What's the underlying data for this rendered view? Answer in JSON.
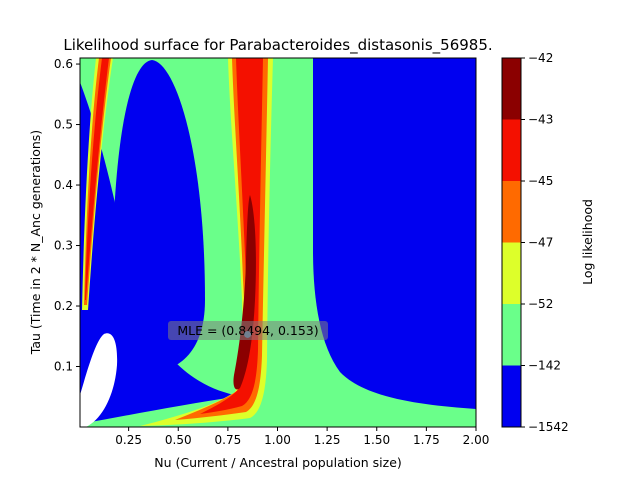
{
  "chart_data": {
    "type": "heatmap",
    "title": "Likelihood surface for Parabacteroides_distasonis_56985.",
    "xlabel": "Nu (Current / Ancestral population size)",
    "ylabel": "Tau (Time in 2 * N_Anc generations)",
    "xlim": [
      0.005,
      2.0
    ],
    "ylim": [
      0.0,
      0.61
    ],
    "x_ticks": [
      0.25,
      0.5,
      0.75,
      1.0,
      1.25,
      1.5,
      1.75,
      2.0
    ],
    "x_tick_labels": [
      "0.25",
      "0.50",
      "0.75",
      "1.00",
      "1.25",
      "1.50",
      "1.75",
      "2.00"
    ],
    "y_ticks": [
      0.1,
      0.2,
      0.3,
      0.4,
      0.5,
      0.6
    ],
    "y_tick_labels": [
      "0.1",
      "0.2",
      "0.3",
      "0.4",
      "0.5",
      "0.6"
    ],
    "colorbar": {
      "label": "Log likelihood",
      "levels": [
        -1542,
        -142,
        -52,
        -47,
        -45,
        -43,
        -42
      ],
      "level_labels": [
        "−1542",
        "−142",
        "−52",
        "−47",
        "−45",
        "−43",
        "−42"
      ],
      "colors": [
        "#0000f0",
        "#6aff8a",
        "#ddff2a",
        "#ff6a00",
        "#f41000",
        "#8b0000"
      ]
    },
    "mle": {
      "nu": 0.8494,
      "tau": 0.153,
      "label": "MLE = (0.8494, 0.153)"
    },
    "grid": false
  }
}
